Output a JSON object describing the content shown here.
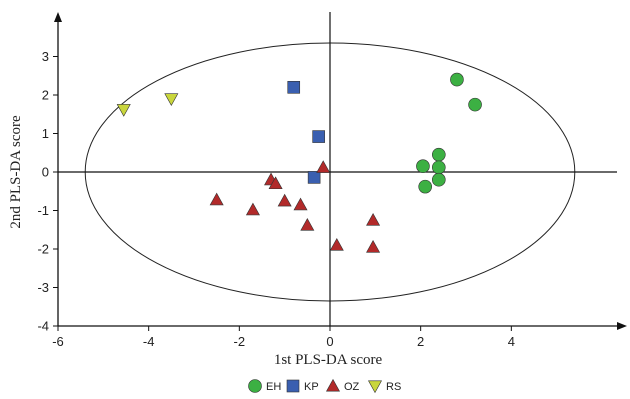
{
  "chart_data": {
    "type": "scatter",
    "xlabel": "1st PLS-DA score",
    "ylabel": "2nd PLS-DA score",
    "xlim": [
      -6,
      6
    ],
    "ylim": [
      -4,
      4
    ],
    "x_ticks": [
      -6,
      -4,
      -2,
      0,
      2,
      4
    ],
    "y_ticks": [
      -4,
      -3,
      -2,
      -1,
      0,
      1,
      2,
      3
    ],
    "grid": false,
    "legend_position": "bottom",
    "confidence_ellipse": {
      "center": [
        0,
        0
      ],
      "semi_axis_x": 5.4,
      "semi_axis_y": 3.35
    },
    "series": [
      {
        "name": "EH",
        "marker": "circle",
        "color": "#3cb043",
        "points": [
          [
            2.8,
            2.4
          ],
          [
            3.2,
            1.75
          ],
          [
            2.4,
            0.45
          ],
          [
            2.05,
            0.15
          ],
          [
            2.4,
            0.12
          ],
          [
            2.1,
            -0.38
          ],
          [
            2.4,
            -0.2
          ]
        ]
      },
      {
        "name": "KP",
        "marker": "square",
        "color": "#3a5fb0",
        "points": [
          [
            -0.8,
            2.2
          ],
          [
            -0.25,
            0.92
          ],
          [
            -0.35,
            -0.14
          ]
        ]
      },
      {
        "name": "OZ",
        "marker": "triangle-up",
        "color": "#b22a2a",
        "points": [
          [
            -0.15,
            0.12
          ],
          [
            -1.3,
            -0.2
          ],
          [
            -1.2,
            -0.3
          ],
          [
            -2.5,
            -0.72
          ],
          [
            -1.7,
            -0.98
          ],
          [
            -1.0,
            -0.75
          ],
          [
            -0.65,
            -0.85
          ],
          [
            -0.5,
            -1.38
          ],
          [
            0.15,
            -1.9
          ],
          [
            0.95,
            -1.25
          ],
          [
            0.95,
            -1.95
          ]
        ]
      },
      {
        "name": "RS",
        "marker": "triangle-down",
        "color": "#c9d63c",
        "points": [
          [
            -4.55,
            1.62
          ],
          [
            -3.5,
            1.9
          ]
        ]
      }
    ]
  }
}
